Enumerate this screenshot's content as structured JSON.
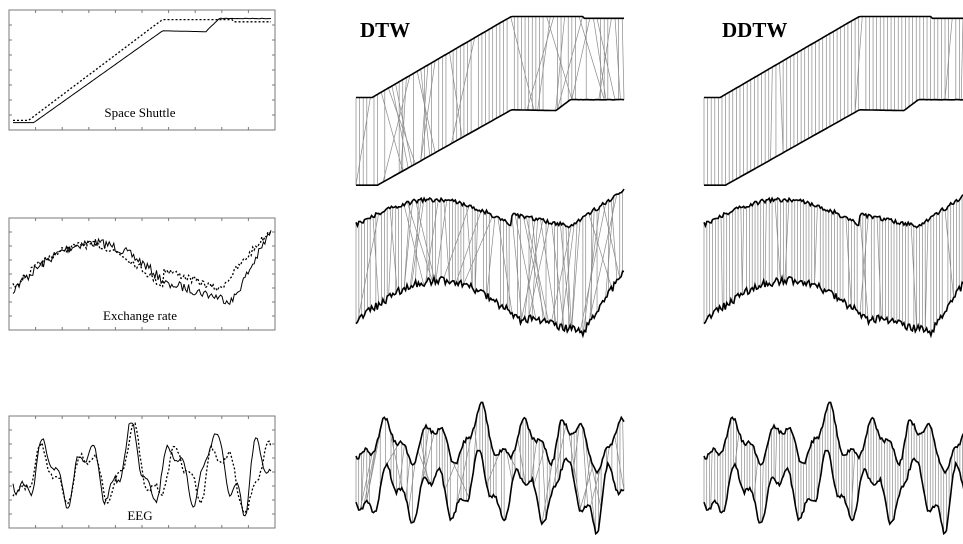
{
  "columns": {
    "left": "",
    "middle": "DTW",
    "right": "DDTW"
  },
  "rows": [
    {
      "label": "Space Shuttle"
    },
    {
      "label": "Exchange rate"
    },
    {
      "label": "EEG"
    }
  ],
  "colors": {
    "series": "#000000",
    "warping_lines": "#8a8a8a",
    "axes": "#7a7a7a"
  },
  "line_styles": {
    "series_a": "solid",
    "series_b": "dotted"
  }
}
